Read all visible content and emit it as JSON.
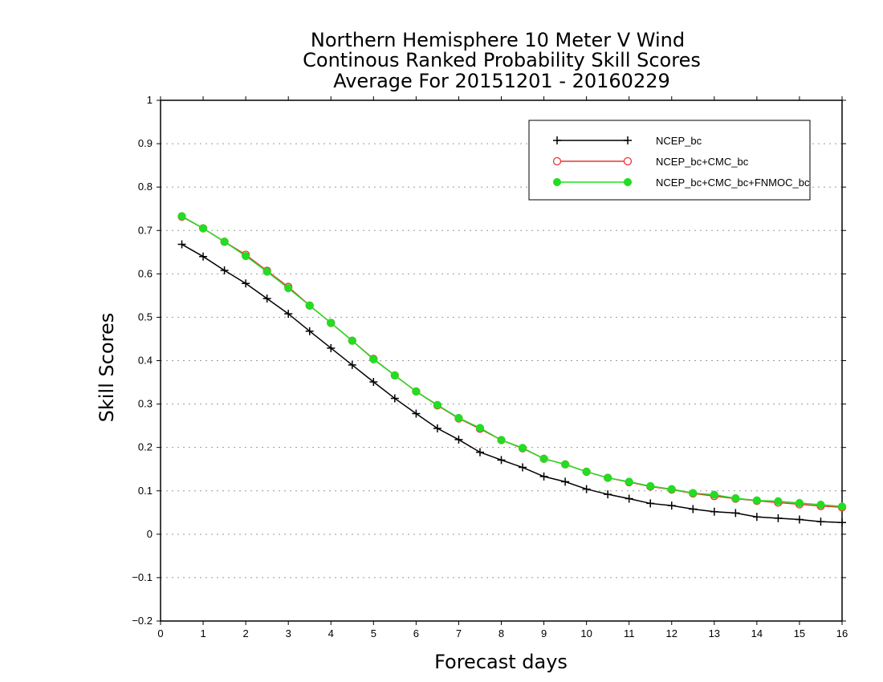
{
  "chart_data": {
    "type": "line",
    "title": [
      "Northern Hemisphere 10 Meter V Wind",
      "Continous Ranked Probability Skill Scores",
      "Average For 20151201 - 20160229"
    ],
    "xlabel": "Forecast days",
    "ylabel": "Skill Scores",
    "xlim": [
      0,
      16
    ],
    "ylim": [
      -0.2,
      1
    ],
    "xticks": [
      0,
      1,
      2,
      3,
      4,
      5,
      6,
      7,
      8,
      9,
      10,
      11,
      12,
      13,
      14,
      15,
      16
    ],
    "yticks": [
      -0.2,
      -0.1,
      0,
      0.1,
      0.2,
      0.3,
      0.4,
      0.5,
      0.6,
      0.7,
      0.8,
      0.9,
      1
    ],
    "ytick_labels": [
      "−0.2",
      "−0.1",
      "0",
      "0.1",
      "0.2",
      "0.3",
      "0.4",
      "0.5",
      "0.6",
      "0.7",
      "0.8",
      "0.9",
      "1"
    ],
    "grid": "horizontal dotted",
    "legend_position": "top-right",
    "x": [
      0.5,
      1,
      1.5,
      2,
      2.5,
      3,
      3.5,
      4,
      4.5,
      5,
      5.5,
      6,
      6.5,
      7,
      7.5,
      8,
      8.5,
      9,
      9.5,
      10,
      10.5,
      11,
      11.5,
      12,
      12.5,
      13,
      13.5,
      14,
      14.5,
      15,
      15.5,
      16
    ],
    "series": [
      {
        "name": "NCEP_bc",
        "color": "#000000",
        "marker": "plus",
        "values": [
          0.668,
          0.64,
          0.608,
          0.578,
          0.543,
          0.508,
          0.468,
          0.429,
          0.39,
          0.351,
          0.313,
          0.278,
          0.244,
          0.218,
          0.189,
          0.171,
          0.154,
          0.133,
          0.121,
          0.104,
          0.092,
          0.082,
          0.071,
          0.066,
          0.058,
          0.052,
          0.049,
          0.04,
          0.037,
          0.034,
          0.029,
          0.027
        ]
      },
      {
        "name": "NCEP_bc+CMC_bc",
        "color": "#ee3333",
        "marker": "open-circle",
        "values": [
          0.732,
          0.705,
          0.674,
          0.644,
          0.607,
          0.57,
          0.527,
          0.487,
          0.446,
          0.404,
          0.366,
          0.329,
          0.297,
          0.267,
          0.243,
          0.217,
          0.198,
          0.174,
          0.161,
          0.144,
          0.13,
          0.12,
          0.11,
          0.103,
          0.094,
          0.088,
          0.082,
          0.077,
          0.073,
          0.069,
          0.065,
          0.062
        ]
      },
      {
        "name": "NCEP_bc+CMC_bc+FNMOC_bc",
        "color": "#22dd22",
        "marker": "filled-circle",
        "values": [
          0.733,
          0.705,
          0.674,
          0.641,
          0.605,
          0.567,
          0.527,
          0.487,
          0.446,
          0.403,
          0.366,
          0.329,
          0.298,
          0.268,
          0.245,
          0.217,
          0.199,
          0.174,
          0.161,
          0.144,
          0.13,
          0.121,
          0.111,
          0.104,
          0.095,
          0.091,
          0.083,
          0.078,
          0.076,
          0.072,
          0.068,
          0.064
        ]
      }
    ]
  }
}
